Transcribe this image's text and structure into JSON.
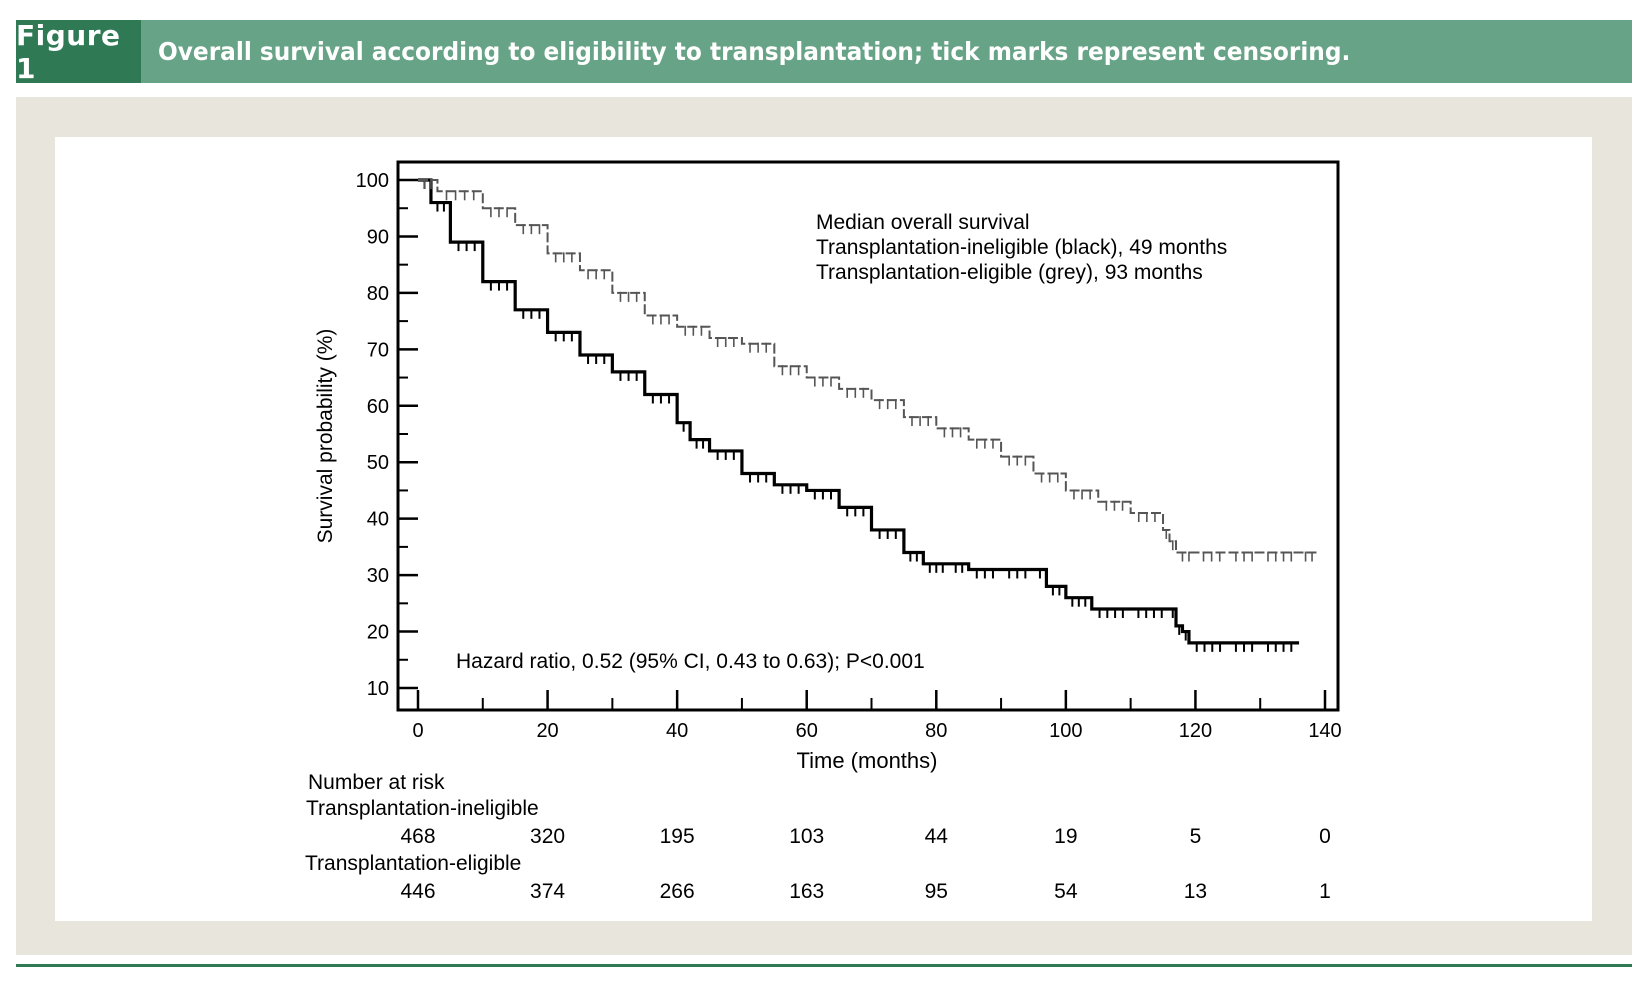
{
  "figure": {
    "label": "Figure 1",
    "title": "Overall survival according to eligibility to transplantation; tick marks represent censoring."
  },
  "colors": {
    "header_bar": "#67a386",
    "header_label": "#2f7a54",
    "frame": "#e8e5dc",
    "ineligible_line": "#000000",
    "eligible_line": "#555555"
  },
  "chart_data": {
    "type": "line",
    "xlabel": "Time (months)",
    "ylabel": "Survival probability (%)",
    "xlim": [
      0,
      140
    ],
    "ylim": [
      10,
      100
    ],
    "xticks": [
      0,
      20,
      40,
      60,
      80,
      100,
      120,
      140
    ],
    "yticks": [
      10,
      20,
      30,
      40,
      50,
      60,
      70,
      80,
      90,
      100
    ],
    "legend_lines": [
      "Median overall survival",
      "Transplantation-ineligible (black), 49 months",
      "Transplantation-eligible (grey), 93 months"
    ],
    "annotation": "Hazard ratio, 0.52 (95% CI, 0.43 to 0.63); P<0.001",
    "series": [
      {
        "name": "Transplantation-ineligible",
        "color": "#000000",
        "x": [
          0,
          2,
          5,
          10,
          15,
          20,
          25,
          30,
          35,
          40,
          42,
          45,
          50,
          55,
          60,
          65,
          70,
          75,
          78,
          82,
          85,
          90,
          95,
          97,
          100,
          104,
          110,
          116,
          117,
          118,
          119,
          125,
          130,
          136
        ],
        "y": [
          100,
          96,
          89,
          82,
          77,
          73,
          69,
          66,
          62,
          57,
          54,
          52,
          48,
          46,
          45,
          42,
          38,
          34,
          32,
          32,
          31,
          31,
          31,
          28,
          26,
          24,
          24,
          24,
          21,
          20,
          18,
          18,
          18,
          18
        ]
      },
      {
        "name": "Transplantation-eligible",
        "color": "#555555",
        "x": [
          0,
          3,
          10,
          15,
          20,
          25,
          30,
          35,
          40,
          45,
          50,
          55,
          60,
          65,
          70,
          75,
          80,
          85,
          90,
          95,
          100,
          105,
          110,
          115,
          116,
          117,
          120,
          125,
          130,
          136,
          139
        ],
        "y": [
          100,
          98,
          95,
          92,
          87,
          84,
          80,
          76,
          74,
          72,
          71,
          67,
          65,
          63,
          61,
          58,
          56,
          54,
          51,
          48,
          45,
          43,
          41,
          38,
          36,
          34,
          34,
          34,
          34,
          34,
          34
        ]
      }
    ],
    "risk_table": {
      "title": "Number at risk",
      "times": [
        0,
        20,
        40,
        60,
        80,
        100,
        120,
        140
      ],
      "rows": [
        {
          "label": "Transplantation-ineligible",
          "values": [
            "468",
            "320",
            "195",
            "103",
            "44",
            "19",
            "5",
            "0"
          ]
        },
        {
          "label": "Transplantation-eligible",
          "values": [
            "446",
            "374",
            "266",
            "163",
            "95",
            "54",
            "13",
            "1"
          ]
        }
      ]
    }
  }
}
